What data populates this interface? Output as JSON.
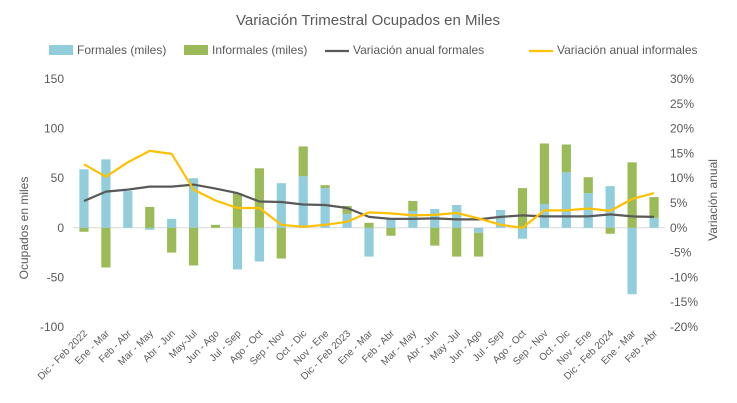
{
  "chart_data": {
    "type": "bar",
    "title": "Variación Trimestral Ocupados en Miles",
    "categories": [
      "Dic - Feb 2022",
      "Ene - Mar",
      "Feb - Abr",
      "Mar - May",
      "Abr - Jun",
      "May-Jul",
      "Jun - Ago",
      "Jul - Sep",
      "Ago - Oct",
      "Sep - Nov",
      "Oct - Dic",
      "Nov - Ene",
      "Dic - Feb 2023",
      "Ene - Mar",
      "Feb - Abr",
      "Mar - May",
      "Abr - Jun",
      "May -Jul",
      "Jun - Ago",
      "Jul - Sep",
      "Ago - Oct",
      "Sep - Nov",
      "Oct - Dic",
      "Nov - Ene",
      "Dic - Feb 2024",
      "Ene - Mar",
      "Feb - Abr"
    ],
    "ylabel": "Ocupados en miles",
    "y2label": "Variación anual",
    "ylim": [
      -100,
      150
    ],
    "yticks": [
      -100,
      -50,
      0,
      50,
      100,
      150
    ],
    "y2lim": [
      -0.2,
      0.3
    ],
    "y2ticks": [
      "-20%",
      "-15%",
      "-10%",
      "-5%",
      "0%",
      "5%",
      "10%",
      "15%",
      "20%",
      "25%",
      "30%"
    ],
    "legend_position": "top",
    "series": [
      {
        "name": "Formales (miles)",
        "kind": "bar",
        "color": "#92cddc",
        "values": [
          59,
          69,
          37,
          -2,
          9,
          50,
          0,
          -42,
          -34,
          45,
          52,
          40,
          14,
          -29,
          9,
          17,
          19,
          23,
          -5,
          18,
          -11,
          24,
          56,
          35,
          42,
          -67,
          10
        ]
      },
      {
        "name": "Informales (miles)",
        "kind": "bar",
        "color": "#9bbb59",
        "values": [
          -4,
          -40,
          0,
          21,
          -25,
          -38,
          3,
          35,
          60,
          -31,
          30,
          3,
          8,
          5,
          -8,
          10,
          -18,
          -29,
          -24,
          0,
          40,
          61,
          28,
          16,
          -6,
          66,
          21
        ]
      },
      {
        "name": "Variación anual formales",
        "kind": "line",
        "color": "#595959",
        "values": [
          0.054,
          0.073,
          0.077,
          0.083,
          0.083,
          0.087,
          0.079,
          0.07,
          0.053,
          0.052,
          0.047,
          0.046,
          0.04,
          0.022,
          0.018,
          0.018,
          0.019,
          0.017,
          0.017,
          0.022,
          0.025,
          0.023,
          0.023,
          0.023,
          0.027,
          0.023,
          0.022
        ]
      },
      {
        "name": "Variación anual informales",
        "kind": "line",
        "color": "#ffc000",
        "values": [
          0.128,
          0.103,
          0.132,
          0.155,
          0.149,
          0.077,
          0.055,
          0.04,
          0.04,
          0.006,
          0.002,
          0.006,
          0.012,
          0.031,
          0.029,
          0.025,
          0.026,
          0.03,
          0.019,
          0.006,
          0.0,
          0.035,
          0.035,
          0.039,
          0.034,
          0.058,
          0.07
        ]
      }
    ]
  }
}
